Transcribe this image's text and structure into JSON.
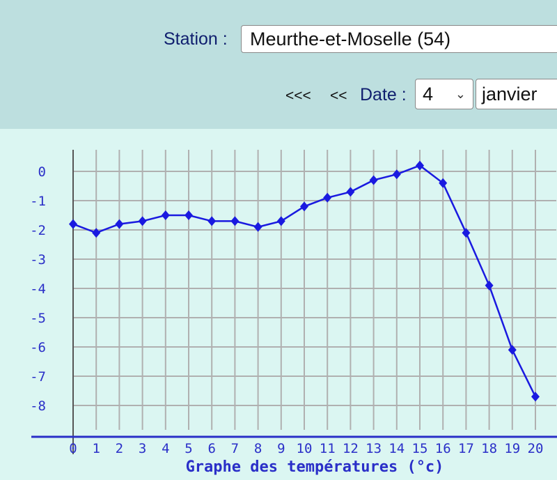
{
  "header": {
    "station_label": "Station :",
    "station_value": "Meurthe-et-Moselle (54)",
    "nav_back_far": "<<<",
    "nav_back": "<<",
    "date_label": "Date :",
    "day_value": "4",
    "month_value": "janvier"
  },
  "colors": {
    "header_bg": "#bddfdf",
    "chart_bg": "#dbf6f2",
    "series": "#1a1ae0",
    "grid": "#b0b0b0",
    "axis": "#2a2fc8"
  },
  "chart_data": {
    "type": "line",
    "title": "Graphe des températures (°c)",
    "x": [
      0,
      1,
      2,
      3,
      4,
      5,
      6,
      7,
      8,
      9,
      10,
      11,
      12,
      13,
      14,
      15,
      16,
      17,
      18,
      19,
      20
    ],
    "values": [
      -1.8,
      -2.1,
      -1.8,
      -1.7,
      -1.5,
      -1.5,
      -1.7,
      -1.7,
      -1.9,
      -1.7,
      -1.2,
      -0.9,
      -0.7,
      -0.3,
      -0.1,
      0.2,
      -0.4,
      -2.1,
      -3.9,
      -6.1,
      -7.7
    ],
    "x_ticks": [
      "0",
      "1",
      "2",
      "3",
      "4",
      "5",
      "6",
      "7",
      "8",
      "9",
      "10",
      "11",
      "12",
      "13",
      "14",
      "15",
      "16",
      "17",
      "18",
      "19",
      "20"
    ],
    "y_ticks": [
      "0",
      "-1",
      "-2",
      "-3",
      "-4",
      "-5",
      "-6",
      "-7",
      "-8"
    ],
    "xlim": [
      0,
      20
    ],
    "ylim": [
      -9,
      0.8
    ],
    "grid": true,
    "marker": "diamond"
  }
}
